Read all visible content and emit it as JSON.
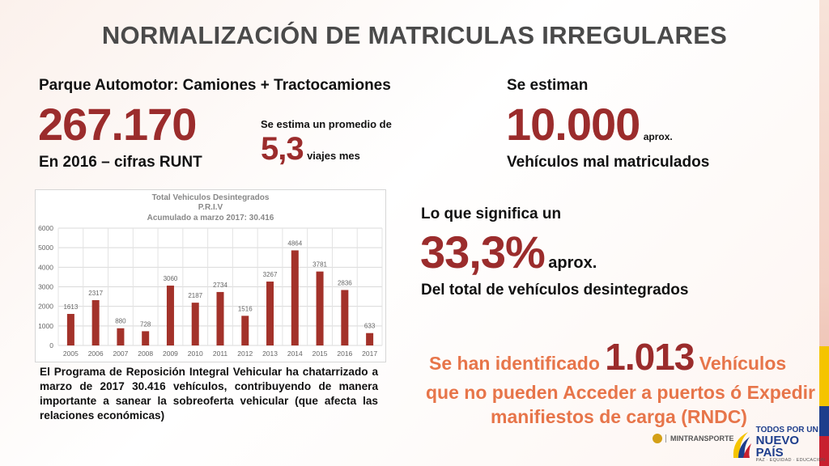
{
  "title": "NORMALIZACIÓN DE MATRICULAS IRREGULARES",
  "left_block": {
    "label": "Parque Automotor: Camiones + Tractocamiones",
    "big_number": "267.170",
    "sub": "En 2016 – cifras RUNT",
    "estimate_text": "Se estima un promedio de",
    "estimate_value": "5,3",
    "estimate_unit": "viajes mes"
  },
  "right_block": {
    "label": "Se estiman",
    "big_number": "10.000",
    "suffix": "aprox.",
    "sub": "Vehículos mal matriculados"
  },
  "middle_block": {
    "label": "Lo que significa un",
    "big_number": "33,3%",
    "suffix": "aprox.",
    "sub": "Del total de vehículos desintegrados"
  },
  "identified": {
    "prefix": "Se han identificado",
    "number": "1.013",
    "after": "Vehículos",
    "line2": "que no pueden Acceder a puertos ó Expedir",
    "line3": "manifiestos de carga (RNDC)"
  },
  "paragraph": "El Programa de Reposición Integral Vehicular ha chatarrizado a marzo de 2017 30.416 vehículos, contribuyendo de manera importante a sanear la sobreoferta vehicular (que afecta las relaciones económicas)",
  "footer": {
    "ministry": "MINTRANSPORTE",
    "brand_line1": "TODOS POR UN",
    "brand_line2": "NUEVO PAÍS",
    "brand_line3": "PAZ · EQUIDAD · EDUCACIÓN"
  },
  "colors": {
    "accent_red": "#9b2c2c",
    "accent_orange": "#e7754a",
    "bar": "#a3322a"
  },
  "chart_data": {
    "type": "bar",
    "title": "Total Vehiculos Desintegrados",
    "subtitle": "P.R.I.V",
    "subtitle2": "Acumulado a marzo 2017: 30.416",
    "categories": [
      "2005",
      "2006",
      "2007",
      "2008",
      "2009",
      "2010",
      "2011",
      "2012",
      "2013",
      "2014",
      "2015",
      "2016",
      "2017"
    ],
    "values": [
      1613,
      2317,
      880,
      728,
      3060,
      2187,
      2734,
      1516,
      3267,
      4864,
      3781,
      2836,
      633
    ],
    "yticks": [
      0,
      1000,
      2000,
      3000,
      4000,
      5000,
      6000
    ],
    "ylim": [
      0,
      6000
    ],
    "grid": true
  }
}
